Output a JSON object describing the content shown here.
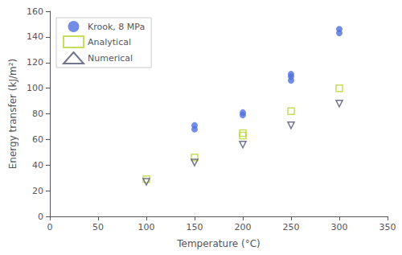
{
  "chart_data": {
    "type": "scatter",
    "xlabel": "Temperature (°C)",
    "ylabel": "Energy transfer (kJ/m²)",
    "xlim": [
      0,
      350
    ],
    "ylim": [
      0,
      160
    ],
    "xticks": [
      0,
      50,
      100,
      150,
      200,
      250,
      300,
      350
    ],
    "yticks": [
      0,
      20,
      40,
      60,
      80,
      100,
      120,
      140,
      160
    ],
    "grid": false,
    "legend": "upper left",
    "series": [
      {
        "name": "Krook, 8 MPa",
        "marker": "filled_circle",
        "x": [
          150,
          150,
          200,
          200,
          250,
          250,
          250,
          300,
          300
        ],
        "values": [
          68,
          71,
          79,
          81,
          106,
          109,
          111,
          143,
          146
        ]
      },
      {
        "name": "Analytical",
        "marker": "open_square",
        "x": [
          100,
          150,
          200,
          200,
          250,
          300
        ],
        "values": [
          29,
          46,
          63,
          65,
          82,
          100
        ]
      },
      {
        "name": "Numerical",
        "marker": "open_triangle_down",
        "x": [
          100,
          150,
          200,
          250,
          300
        ],
        "values": [
          27,
          42,
          56,
          71,
          88
        ]
      }
    ]
  }
}
